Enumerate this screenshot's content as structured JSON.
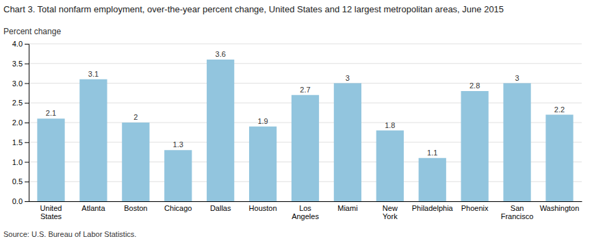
{
  "chart_data": {
    "type": "bar",
    "title": "Chart 3. Total nonfarm employment, over-the-year percent change, United States and 12 largest metropolitan areas, June 2015",
    "ylabel": "Percent change",
    "source": "Source: U.S. Bureau of Labor Statistics.",
    "categories": [
      "United\nStates",
      "Atlanta",
      "Boston",
      "Chicago",
      "Dallas",
      "Houston",
      "Los\nAngeles",
      "Miami",
      "New\nYork",
      "Philadelphia",
      "Phoenix",
      "San\nFrancisco",
      "Washington"
    ],
    "values": [
      2.1,
      3.1,
      2.0,
      1.3,
      3.6,
      1.9,
      2.7,
      3.0,
      1.8,
      1.1,
      2.8,
      3.0,
      2.2
    ],
    "color": "#92c5de",
    "ylim": [
      0,
      4.0
    ],
    "yticks": [
      {
        "value": 0,
        "label": "0.0"
      },
      0.5,
      {
        "value": 1,
        "label": "1.0"
      },
      1.5,
      {
        "value": 2,
        "label": "2.0"
      },
      2.5,
      {
        "value": 3,
        "label": "3.0"
      },
      3.5,
      {
        "value": 4,
        "label": "4.0"
      }
    ],
    "grid": true,
    "data_labels": true
  }
}
